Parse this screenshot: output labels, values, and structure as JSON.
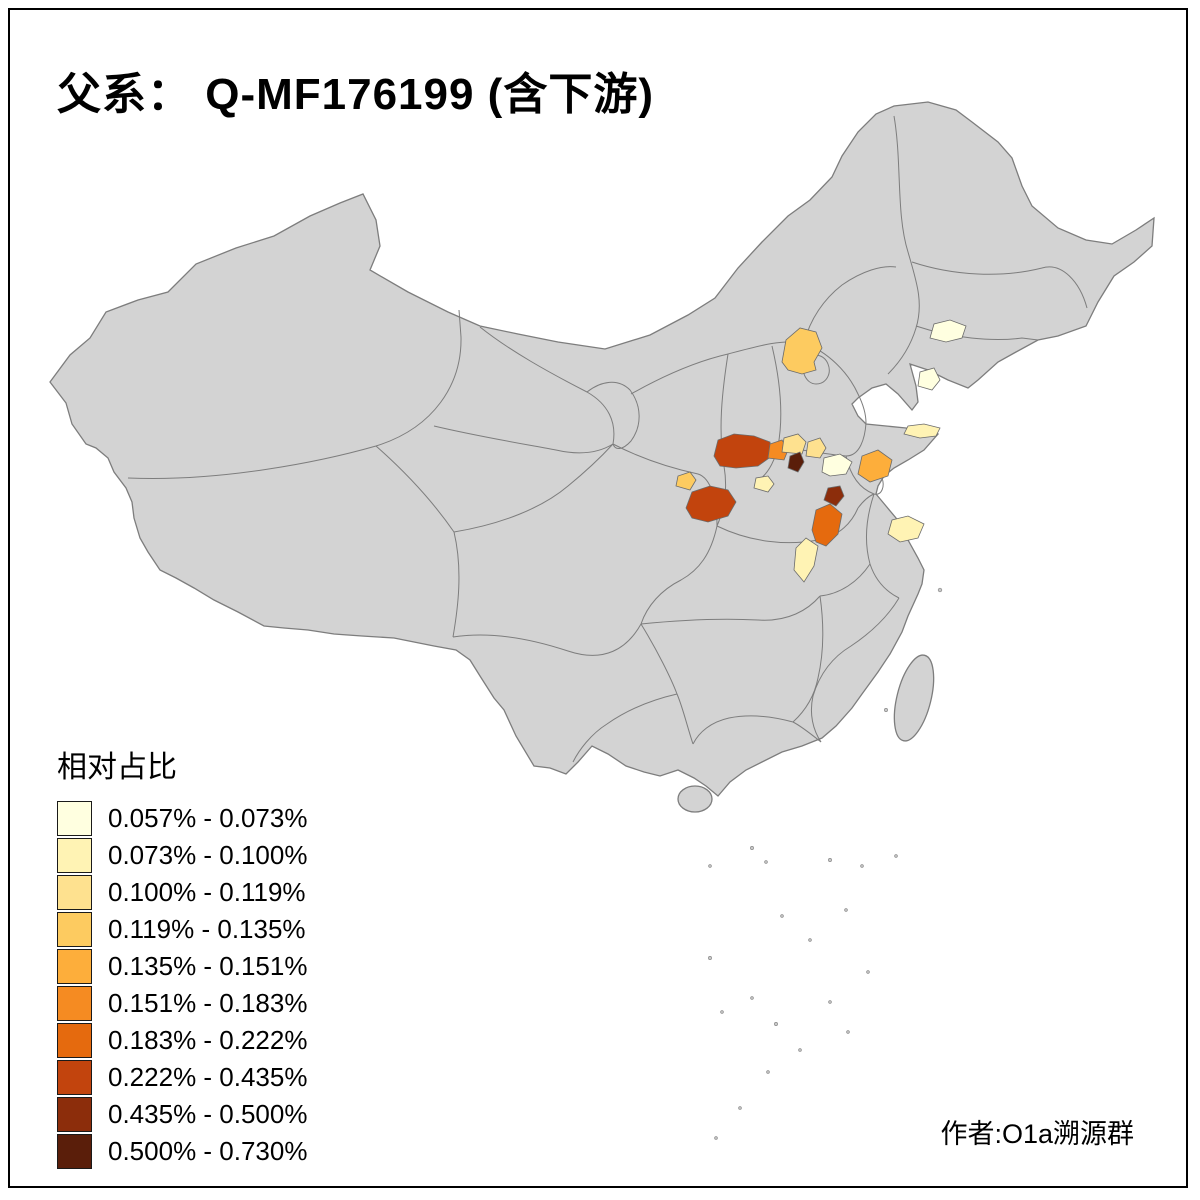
{
  "title": "父系： Q-MF176199 (含下游)",
  "legend": {
    "title": "相对占比",
    "palette": [
      "#FFFFE0",
      "#FFF3B4",
      "#FEE18F",
      "#FDCB60",
      "#FDAE3B",
      "#F58B22",
      "#E56A0E",
      "#C2440D",
      "#8C2D0B",
      "#5A1E0A"
    ],
    "bins": [
      "0.057% - 0.073%",
      "0.073% - 0.100%",
      "0.100% - 0.119%",
      "0.119% - 0.135%",
      "0.135% - 0.151%",
      "0.151% - 0.183%",
      "0.183% - 0.222%",
      "0.222% - 0.435%",
      "0.435% - 0.500%",
      "0.500% - 0.730%"
    ]
  },
  "credit": "作者:O1a溯源群",
  "map": {
    "land_color": "#d3d3d3",
    "border_color": "#7d7d7d",
    "regions": {
      "p1": {
        "bin": 3
      },
      "p2": {
        "bin": 0
      },
      "p3": {
        "bin": 0
      },
      "p4": {
        "bin": 1
      },
      "p5": {
        "bin": 7
      },
      "p6": {
        "bin": 5
      },
      "p7": {
        "bin": 2
      },
      "p8": {
        "bin": 9
      },
      "p9": {
        "bin": 2
      },
      "p10": {
        "bin": 0
      },
      "p11": {
        "bin": 4
      },
      "p12": {
        "bin": 1
      },
      "p13": {
        "bin": 3
      },
      "p14": {
        "bin": 7
      },
      "p15": {
        "bin": 8
      },
      "p16": {
        "bin": 6
      },
      "p17": {
        "bin": 1
      },
      "p18": {
        "bin": 1
      }
    }
  }
}
